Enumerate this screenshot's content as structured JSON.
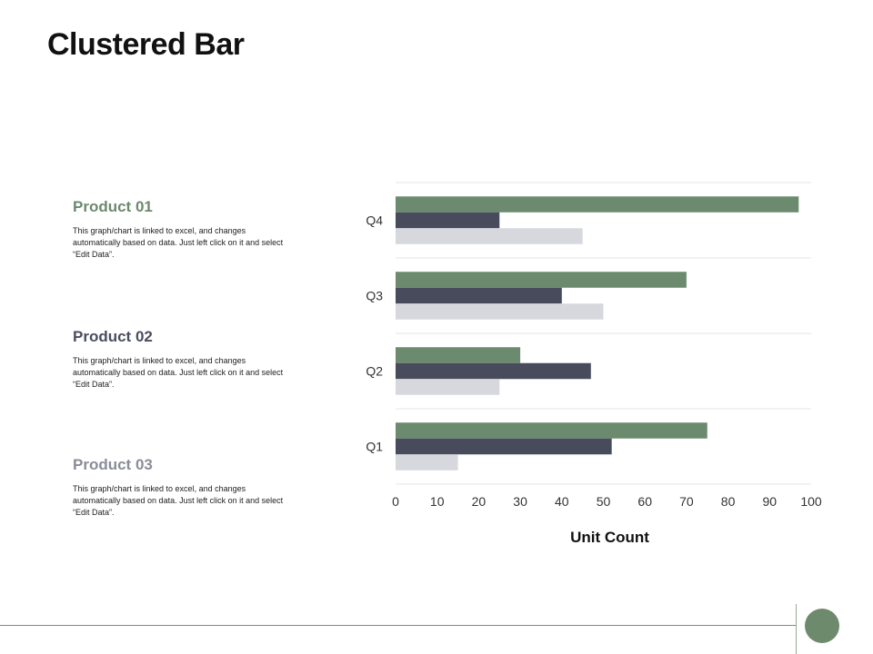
{
  "page": {
    "title": "Clustered Bar"
  },
  "products": [
    {
      "name": "Product 01",
      "color": "#6b8a6e",
      "description": "This graph/chart is linked to excel, and changes automatically based on data. Just left click on it and select “Edit Data”."
    },
    {
      "name": "Product 02",
      "color": "#4a4d5e",
      "description": "This graph/chart is linked to excel, and changes automatically based on data. Just left click on it and select “Edit Data”."
    },
    {
      "name": "Product 03",
      "color": "#8a8d97",
      "description": "This graph/chart is linked to excel, and changes automatically based on data. Just left click on it and select “Edit Data”."
    }
  ],
  "chart_data": {
    "type": "bar",
    "orientation": "horizontal",
    "categories": [
      "Q1",
      "Q2",
      "Q3",
      "Q4"
    ],
    "series": [
      {
        "name": "Product 01",
        "color": "#6b8a6e",
        "values": [
          75,
          30,
          70,
          97
        ]
      },
      {
        "name": "Product 02",
        "color": "#474b5c",
        "values": [
          52,
          47,
          40,
          25
        ]
      },
      {
        "name": "Product 03",
        "color": "#d6d8de",
        "values": [
          15,
          25,
          50,
          45
        ]
      }
    ],
    "xlabel": "Unit Count",
    "xlim": [
      0,
      100
    ],
    "xticks": [
      "0",
      "10",
      "20",
      "30",
      "40",
      "50",
      "60",
      "70",
      "80",
      "90",
      "100"
    ],
    "grid": true
  }
}
